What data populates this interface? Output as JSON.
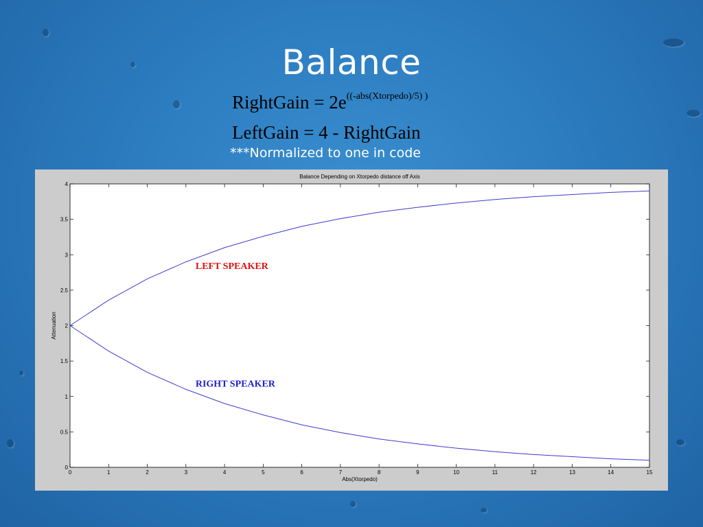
{
  "slide": {
    "title": "Balance",
    "formula_right": {
      "lhs": "RightGain",
      "eq": " = 2e",
      "exponent": "((-abs(Xtorpedo)/5) )"
    },
    "formula_left": "LeftGain = 4 - RightGain",
    "note": "***Normalized to one in code"
  },
  "colors": {
    "curve": "#3a3ad0",
    "left_label": "#e01010",
    "right_label": "#2020c8"
  },
  "chart_data": {
    "type": "line",
    "title": "Balance Depending on Xtorpedo distance off Axis",
    "xlabel": "Abs(Xtorpedo)",
    "ylabel": "Attenuation",
    "xlim": [
      0,
      15
    ],
    "ylim": [
      0,
      4
    ],
    "xticks": [
      "0",
      "1",
      "2",
      "3",
      "4",
      "5",
      "6",
      "7",
      "8",
      "9",
      "10",
      "11",
      "12",
      "13",
      "14",
      "15"
    ],
    "yticks": [
      "0",
      "0.5",
      "1",
      "1.5",
      "2",
      "2.5",
      "3",
      "3.5",
      "4"
    ],
    "grid": false,
    "x": [
      0,
      1,
      2,
      3,
      4,
      5,
      6,
      7,
      8,
      9,
      10,
      11,
      12,
      13,
      14,
      15
    ],
    "series": [
      {
        "values": [
          2.0,
          2.36,
          2.66,
          2.9,
          3.1,
          3.26,
          3.4,
          3.51,
          3.6,
          3.67,
          3.73,
          3.78,
          3.82,
          3.85,
          3.88,
          3.9
        ]
      },
      {
        "values": [
          2.0,
          1.64,
          1.34,
          1.1,
          0.9,
          0.74,
          0.6,
          0.49,
          0.4,
          0.33,
          0.27,
          0.22,
          0.18,
          0.15,
          0.12,
          0.1
        ]
      }
    ],
    "annotations": [
      {
        "text": "LEFT SPEAKER",
        "x": 3.25,
        "y": 2.8
      },
      {
        "text": "RIGHT SPEAKER",
        "x": 3.25,
        "y": 1.14
      }
    ]
  }
}
